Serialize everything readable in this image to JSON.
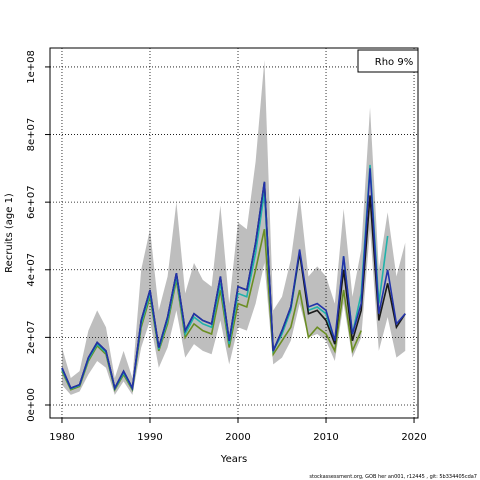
{
  "chart_data": {
    "type": "line",
    "legend_text": "Rho 9%",
    "legend": "top-right",
    "xlabel": "Years",
    "ylabel": "Recruits (age 1)",
    "footnote": "stockassessment.org, GOB her an001, r12445 , git: 5b334405cda7",
    "grid": true,
    "x": [
      1980,
      1981,
      1982,
      1983,
      1984,
      1985,
      1986,
      1987,
      1988,
      1989,
      1990,
      1991,
      1992,
      1993,
      1994,
      1995,
      1996,
      1997,
      1998,
      1999,
      2000,
      2001,
      2002,
      2003,
      2004,
      2005,
      2006,
      2007,
      2008,
      2009,
      2010,
      2011,
      2012,
      2013,
      2014,
      2015,
      2016,
      2017,
      2018,
      2019
    ],
    "xlim": [
      1978.64,
      2020.45
    ],
    "xticks": [
      1980,
      1990,
      2000,
      2010,
      2020
    ],
    "ylim": [
      -3850000.0,
      105600000.0
    ],
    "yticks": [
      {
        "value": 0,
        "label": "0e+00"
      },
      {
        "value": 20000000.0,
        "label": "2e+07"
      },
      {
        "value": 40000000.0,
        "label": "4e+07"
      },
      {
        "value": 60000000.0,
        "label": "6e+07"
      },
      {
        "value": 80000000.0,
        "label": "8e+07"
      },
      {
        "value": 100000000.0,
        "label": "1e+08"
      }
    ],
    "band": {
      "color": "#bebebe",
      "upper": [
        17000000.0,
        8000000.0,
        10000000.0,
        22000000.0,
        28000000.0,
        23000000.0,
        8000000.0,
        16000000.0,
        8000000.0,
        40000000.0,
        52000000.0,
        28000000.0,
        38000000.0,
        60000000.0,
        33000000.0,
        42000000.0,
        37000000.0,
        35000000.0,
        59000000.0,
        30000000.0,
        54000000.0,
        52000000.0,
        72000000.0,
        102000000.0,
        28000000.0,
        32000000.0,
        43000000.0,
        62000000.0,
        38000000.0,
        41000000.0,
        38000000.0,
        30000000.0,
        58000000.0,
        32000000.0,
        46000000.0,
        88000000.0,
        40000000.0,
        57000000.0,
        38000000.0,
        48000000.0
      ],
      "lower": [
        6000000.0,
        3000000.0,
        4000000.0,
        9000000.0,
        13000000.0,
        11000000.0,
        3000000.0,
        7000000.0,
        3000000.0,
        17000000.0,
        25000000.0,
        11000000.0,
        17000000.0,
        28000000.0,
        14000000.0,
        18000000.0,
        16000000.0,
        15000000.0,
        25000000.0,
        12000000.0,
        23000000.0,
        22000000.0,
        30000000.0,
        42000000.0,
        12000000.0,
        14000000.0,
        19000000.0,
        30000000.0,
        20000000.0,
        21000000.0,
        19000000.0,
        13000000.0,
        30000000.0,
        14000000.0,
        20000000.0,
        52000000.0,
        16000000.0,
        26000000.0,
        14000000.0,
        16000000.0
      ]
    },
    "series": [
      {
        "color": "#6b8e23",
        "values": [
          10000000.0,
          4500000.0,
          5500000.0,
          13000000.0,
          17500000.0,
          15000000.0,
          4500000.0,
          9000000.0,
          4500000.0,
          23000000.0,
          32000000.0,
          16000000.0,
          24000000.0,
          37000000.0,
          20000000.0,
          24000000.0,
          22000000.0,
          21000000.0,
          34000000.0,
          17000000.0,
          30000000.0,
          29000000.0,
          40000000.0,
          52000000.0,
          15000000.0,
          19000000.0,
          23000000.0,
          34000000.0,
          20000000.0,
          23000000.0,
          21000000.0,
          16000000.0,
          34000000.0,
          16000000.0,
          22000000.0,
          null,
          null,
          null,
          null,
          null
        ]
      },
      {
        "color": "#20b2aa",
        "values": [
          10500000.0,
          4800000.0,
          5800000.0,
          13500000.0,
          18000000.0,
          15500000.0,
          4800000.0,
          9500000.0,
          4800000.0,
          24000000.0,
          33000000.0,
          16500000.0,
          25000000.0,
          38000000.0,
          21000000.0,
          26000000.0,
          24000000.0,
          23000000.0,
          36000000.0,
          18000000.0,
          33000000.0,
          32000000.0,
          45000000.0,
          63000000.0,
          16000000.0,
          21000000.0,
          28000000.0,
          45000000.0,
          28000000.0,
          29000000.0,
          27000000.0,
          18000000.0,
          44000000.0,
          21000000.0,
          33000000.0,
          71000000.0,
          30000000.0,
          50000000.0,
          null,
          null
        ]
      },
      {
        "color": "#1a1a1a",
        "values": [
          11000000.0,
          5000000.0,
          6000000.0,
          14000000.0,
          18500000.0,
          16000000.0,
          5000000.0,
          10000000.0,
          5000000.0,
          25000000.0,
          34000000.0,
          17000000.0,
          26000000.0,
          39000000.0,
          22000000.0,
          27000000.0,
          25000000.0,
          24000000.0,
          38000000.0,
          19000000.0,
          35000000.0,
          34000000.0,
          48000000.0,
          66000000.0,
          16000000.0,
          22000000.0,
          29000000.0,
          45000000.0,
          27000000.0,
          28000000.0,
          25000000.0,
          18000000.0,
          40000000.0,
          19000000.0,
          28000000.0,
          62000000.0,
          25000000.0,
          36000000.0,
          23000000.0,
          27000000.0
        ]
      },
      {
        "color": "#2233aa",
        "values": [
          11000000.0,
          5000000.0,
          6000000.0,
          14000000.0,
          18500000.0,
          16000000.0,
          5000000.0,
          10000000.0,
          5000000.0,
          25000000.0,
          34000000.0,
          17000000.0,
          26000000.0,
          39000000.0,
          22000000.0,
          27000000.0,
          25000000.0,
          24000000.0,
          38000000.0,
          19000000.0,
          35000000.0,
          34000000.0,
          48000000.0,
          66000000.0,
          16000000.0,
          22000000.0,
          29000000.0,
          46000000.0,
          29000000.0,
          30000000.0,
          28000000.0,
          19000000.0,
          44000000.0,
          21000000.0,
          30000000.0,
          70000000.0,
          27000000.0,
          40000000.0,
          24000000.0,
          27000000.0
        ]
      }
    ]
  }
}
